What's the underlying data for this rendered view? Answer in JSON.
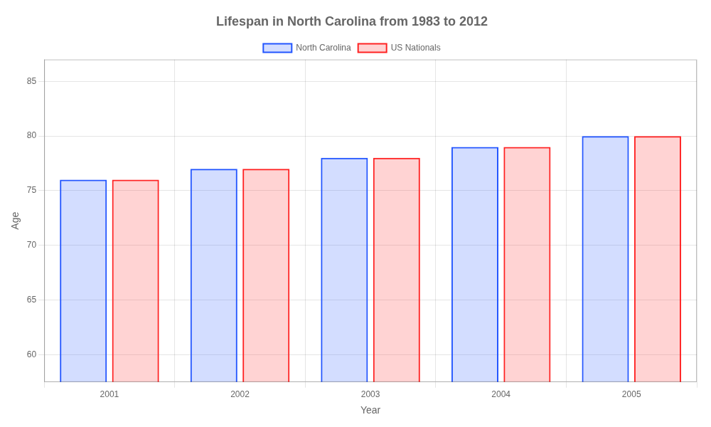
{
  "chart_data": {
    "type": "bar",
    "title": "Lifespan in North Carolina from 1983 to 2012",
    "x_label": "Year",
    "y_label": "Age",
    "categories": [
      "2001",
      "2002",
      "2003",
      "2004",
      "2005"
    ],
    "series": [
      {
        "name": "North Carolina",
        "color": "#2255ff",
        "values": [
          76,
          77,
          78,
          79,
          80
        ]
      },
      {
        "name": "US Nationals",
        "color": "#ff2222",
        "values": [
          76,
          77,
          78,
          79,
          80
        ]
      }
    ],
    "ylim": [
      57.5,
      87
    ],
    "yticks": [
      60,
      65,
      70,
      75,
      80,
      85
    ],
    "grid": true,
    "legend": "top"
  }
}
